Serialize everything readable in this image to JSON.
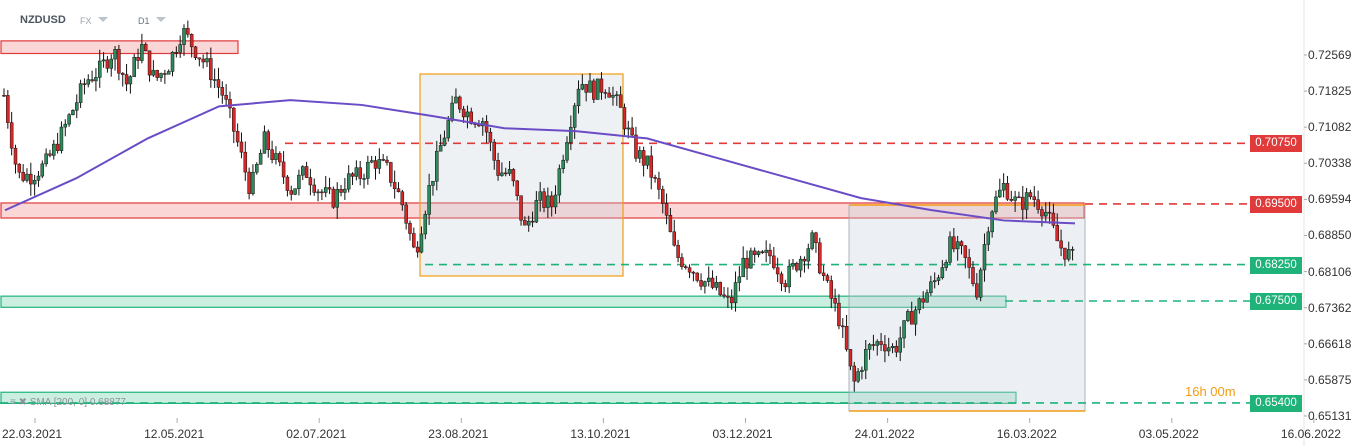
{
  "header": {
    "symbol": "NZDUSD",
    "market": "FX",
    "timeframe": "D1"
  },
  "indicator": {
    "label": "SMA [200, 0] 0.68877"
  },
  "countdown": "16h 00m",
  "colors": {
    "bull": "#2d8a5a",
    "bear": "#d62828",
    "sma": "#6a4cc7",
    "resistance": "#e03a3a",
    "support": "#1fb37a",
    "box": "#f39c12"
  },
  "chart_data": {
    "type": "candlestick",
    "title": "",
    "y_ticks": [
      "0.72569",
      "0.71825",
      "0.71082",
      "0.70338",
      "0.69594",
      "0.68850",
      "0.68106",
      "0.67362",
      "0.66618",
      "0.65875",
      "0.65131"
    ],
    "x_ticks": [
      "22.03.2021",
      "12.05.2021",
      "02.07.2021",
      "23.08.2021",
      "13.10.2021",
      "03.12.2021",
      "24.01.2022",
      "16.03.2022",
      "03.05.2022",
      "16.06.2022"
    ],
    "ylim": [
      0.6513,
      0.7285
    ],
    "close_samples": [
      0.7174,
      0.7009,
      0.7009,
      0.703,
      0.7081,
      0.7143,
      0.7205,
      0.7226,
      0.7267,
      0.7195,
      0.7277,
      0.7205,
      0.7236,
      0.7308,
      0.7267,
      0.7226,
      0.7174,
      0.7081,
      0.6978,
      0.7081,
      0.703,
      0.6978,
      0.7019,
      0.6978,
      0.6958,
      0.6999,
      0.7009,
      0.704,
      0.7019,
      0.6958,
      0.6845,
      0.6978,
      0.7081,
      0.7164,
      0.7133,
      0.7123,
      0.7019,
      0.7009,
      0.6896,
      0.6958,
      0.6947,
      0.7081,
      0.7205,
      0.7184,
      0.7195,
      0.7143,
      0.7061,
      0.703,
      0.6958,
      0.6845,
      0.6824,
      0.6793,
      0.6772,
      0.6741,
      0.6834,
      0.6834,
      0.6845,
      0.6793,
      0.6834,
      0.6876,
      0.6783,
      0.6711,
      0.6577,
      0.6649,
      0.6669,
      0.6649,
      0.6711,
      0.6752,
      0.6793,
      0.6865,
      0.6845,
      0.6772,
      0.6937,
      0.6989,
      0.6947,
      0.6968,
      0.6937,
      0.6865,
      0.6838
    ],
    "sma_200": {
      "name": "SMA [200, 0]",
      "last": 0.68877,
      "samples": [
        0.6937,
        0.7003,
        0.7085,
        0.7151,
        0.7164,
        0.7154,
        0.7131,
        0.7106,
        0.71,
        0.7085,
        0.7044,
        0.7003,
        0.6962,
        0.6937,
        0.6916,
        0.691
      ]
    },
    "levels": [
      {
        "price": "0.70750",
        "type": "resistance"
      },
      {
        "price": "0.69500",
        "type": "resistance"
      },
      {
        "price": "0.68250",
        "type": "support"
      },
      {
        "price": "0.67500",
        "type": "support"
      },
      {
        "price": "0.65400",
        "type": "support"
      }
    ],
    "zones": [
      {
        "from": 0.726,
        "to": 0.7286,
        "type": "resistance"
      },
      {
        "from": 0.6921,
        "to": 0.6952,
        "type": "resistance"
      },
      {
        "from": 0.6737,
        "to": 0.676,
        "type": "support"
      },
      {
        "from": 0.6539,
        "to": 0.6562,
        "type": "support"
      }
    ]
  }
}
